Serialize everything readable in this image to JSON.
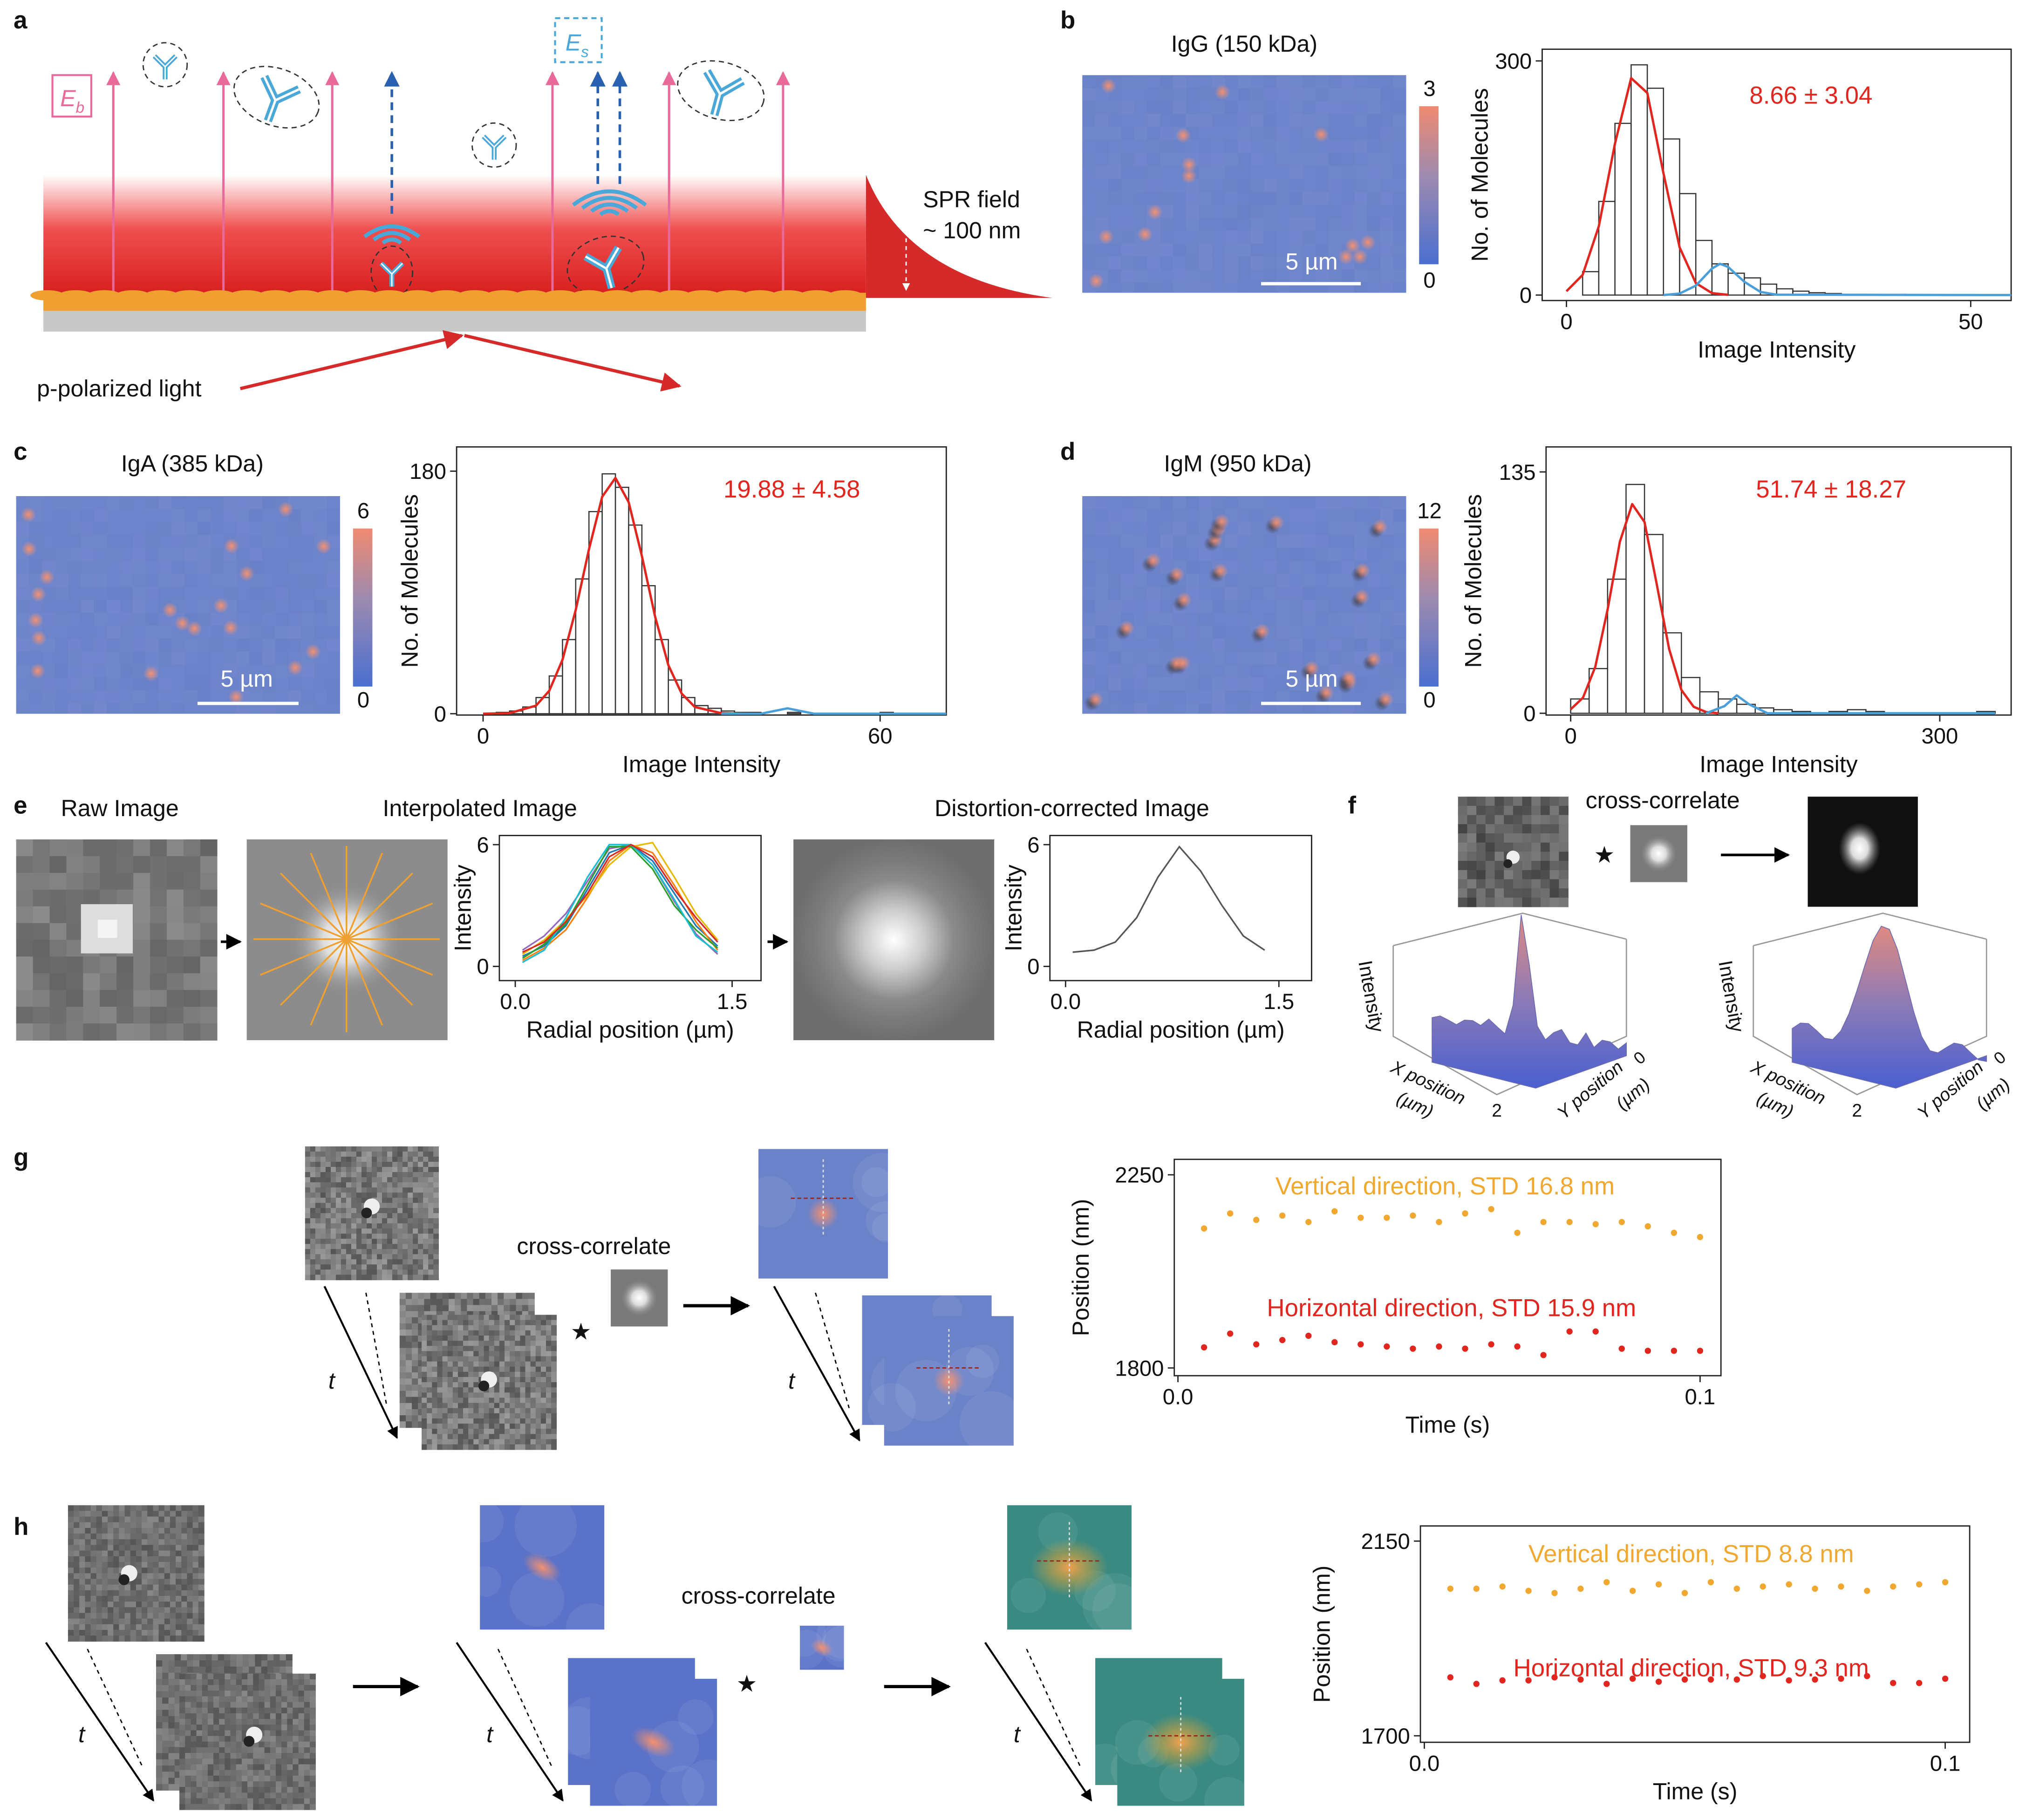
{
  "panel_labels": [
    "a",
    "b",
    "c",
    "d",
    "e",
    "f",
    "g",
    "h"
  ],
  "diagram": {
    "eb": "E",
    "eb_sub": "b",
    "es": "E",
    "es_sub": "s",
    "spr_field": "SPR field",
    "spr_depth": "~ 100 nm",
    "light": "p-polarized light"
  },
  "micrographs": [
    {
      "title": "IgG (150 kDa)",
      "scale_bar": "5 µm",
      "colorbar_ticks": [
        0,
        3
      ]
    },
    {
      "title": "IgA (385 kDa)",
      "scale_bar": "5 µm",
      "colorbar_ticks": [
        0,
        6
      ]
    },
    {
      "title": "IgM (950 kDa)",
      "scale_bar": "5 µm",
      "colorbar_ticks": [
        0,
        12
      ]
    }
  ],
  "panel_e": {
    "raw": "Raw Image",
    "interpolated": "Interpolated Image",
    "corrected": "Distortion-corrected Image"
  },
  "panel_f": {
    "operation": "cross-correlate",
    "star": "★",
    "z_label": "Intensity",
    "x_label": "X position",
    "x_unit": "(µm)",
    "y_label": "Y position",
    "y_unit": "(µm)",
    "x_tick": "2",
    "y_tick": "0"
  },
  "panel_g": {
    "operation": "cross-correlate",
    "star": "★",
    "time": "t"
  },
  "panel_h": {
    "operation": "cross-correlate",
    "star": "★",
    "time": "t"
  },
  "chart_data": [
    {
      "type": "histogram",
      "xlabel": "Image Intensity",
      "ylabel": "No. of Molecules",
      "annotation": "8.66 ± 3.04",
      "annotation_color": "#e0261e",
      "color": "#333333",
      "bins": [
        2,
        4,
        6,
        8,
        10,
        12,
        14,
        16,
        18,
        20,
        22,
        24,
        26,
        28,
        30,
        32,
        34,
        36,
        38,
        40,
        42
      ],
      "counts": [
        30,
        120,
        220,
        295,
        265,
        200,
        130,
        70,
        40,
        28,
        22,
        14,
        8,
        5,
        3,
        2,
        1,
        1,
        0,
        1
      ],
      "fits": [
        {
          "color": "#e0261e",
          "x": [
            0,
            2,
            4,
            6,
            8,
            10,
            12,
            14,
            16,
            18,
            20
          ],
          "values": [
            4.9,
            25.8,
            88,
            194,
            278,
            259,
            156,
            61,
            15.4,
            2.5,
            0.3
          ]
        },
        {
          "color": "#4a9fd8",
          "x": [
            12,
            14,
            16,
            18,
            19,
            20,
            22,
            24,
            26,
            55
          ],
          "values": [
            0,
            2,
            12,
            34,
            40,
            36,
            17,
            4,
            0.5,
            0
          ]
        }
      ],
      "xlim": [
        -3,
        55
      ],
      "xticks": [
        0,
        50
      ],
      "ylim": [
        -7,
        315
      ],
      "yticks": [
        0,
        300
      ]
    },
    {
      "type": "histogram",
      "xlabel": "Image Intensity",
      "ylabel": "No. of Molecules",
      "annotation": "19.88 ± 4.58",
      "annotation_color": "#e0261e",
      "color": "#333333",
      "bins": [
        0,
        2,
        4,
        6,
        8,
        10,
        12,
        14,
        16,
        18,
        20,
        22,
        24,
        26,
        28,
        30,
        32,
        34,
        36,
        38,
        40,
        42,
        44,
        46,
        48,
        50,
        52,
        54,
        56,
        58,
        60,
        62,
        64,
        66,
        68,
        70
      ],
      "counts": [
        0,
        1,
        2,
        5,
        12,
        28,
        55,
        100,
        150,
        178,
        168,
        140,
        95,
        55,
        25,
        12,
        6,
        4,
        2,
        1,
        1,
        0,
        0,
        1,
        0,
        0,
        0,
        0,
        0,
        0,
        1,
        0,
        0,
        0,
        0
      ],
      "fits": [
        {
          "color": "#e0261e",
          "x": [
            0,
            4,
            8,
            10,
            12,
            14,
            16,
            18,
            20,
            22,
            24,
            26,
            28,
            30,
            32,
            36,
            40
          ],
          "values": [
            0,
            0.4,
            6,
            17,
            40,
            77,
            122,
            161,
            175,
            157,
            117,
            72,
            36,
            15,
            5,
            0.4,
            0
          ]
        },
        {
          "color": "#4a9fd8",
          "x": [
            36,
            42,
            44,
            46,
            48,
            50,
            56,
            70
          ],
          "values": [
            0,
            0,
            2,
            4,
            2,
            0,
            0,
            0
          ]
        }
      ],
      "xlim": [
        -4,
        70
      ],
      "xticks": [
        0,
        60
      ],
      "ylim": [
        -1,
        198
      ],
      "yticks": [
        0,
        180
      ]
    },
    {
      "type": "histogram",
      "xlabel": "Image Intensity",
      "ylabel": "No. of Molecules",
      "annotation": "51.74 ± 18.27",
      "annotation_color": "#e0261e",
      "color": "#333333",
      "bins": [
        0,
        15,
        30,
        45,
        60,
        75,
        90,
        105,
        120,
        135,
        150,
        165,
        180,
        195,
        210,
        225,
        240,
        255,
        270,
        285,
        300,
        315,
        330,
        345
      ],
      "counts": [
        8,
        25,
        75,
        128,
        100,
        45,
        20,
        12,
        8,
        5,
        3,
        2,
        1,
        0,
        1,
        2,
        1,
        0,
        0,
        0,
        0,
        0,
        1
      ],
      "fits": [
        {
          "color": "#e0261e",
          "x": [
            0,
            10,
            20,
            30,
            40,
            50,
            60,
            70,
            80,
            90,
            100,
            110,
            120
          ],
          "values": [
            2.2,
            8.7,
            26,
            58,
            96,
            117,
            107,
            72,
            36,
            13,
            3.6,
            0.7,
            0
          ]
        },
        {
          "color": "#4a9fd8",
          "x": [
            110,
            125,
            135,
            145,
            160,
            345
          ],
          "values": [
            0,
            4,
            10,
            5,
            0,
            0
          ]
        }
      ],
      "xlim": [
        -20,
        358
      ],
      "xticks": [
        0,
        300
      ],
      "ylim": [
        -1,
        149
      ],
      "yticks": [
        0,
        135
      ]
    },
    {
      "type": "line",
      "xlabel": "Radial position (µm)",
      "ylabel": "Intensity",
      "x": [
        0.05,
        0.2,
        0.35,
        0.5,
        0.65,
        0.8,
        0.95,
        1.1,
        1.25,
        1.4
      ],
      "series": [
        {
          "color": "#1f77b4",
          "values": [
            0.5,
            1.0,
            2.0,
            3.8,
            5.6,
            6.0,
            5.2,
            3.6,
            2.0,
            1.0
          ]
        },
        {
          "color": "#ff7f0e",
          "values": [
            0.3,
            0.9,
            1.8,
            3.4,
            5.2,
            6.0,
            5.6,
            4.0,
            2.2,
            0.8
          ]
        },
        {
          "color": "#e6b800",
          "values": [
            0.6,
            1.3,
            2.3,
            3.5,
            5.0,
            5.9,
            6.1,
            4.4,
            2.6,
            1.3
          ]
        },
        {
          "color": "#9467bd",
          "values": [
            0.8,
            1.5,
            2.6,
            4.2,
            5.8,
            6.0,
            5.0,
            3.2,
            1.6,
            0.6
          ]
        },
        {
          "color": "#2ca02c",
          "values": [
            0.4,
            1.1,
            2.1,
            4.0,
            5.9,
            5.9,
            4.8,
            3.0,
            1.8,
            0.9
          ]
        },
        {
          "color": "#17becf",
          "values": [
            0.2,
            0.8,
            2.4,
            4.4,
            6.0,
            6.0,
            5.0,
            3.3,
            1.5,
            0.7
          ]
        },
        {
          "color": "#d62728",
          "values": [
            0.7,
            1.2,
            2.2,
            3.6,
            5.4,
            6.0,
            5.4,
            3.8,
            2.4,
            1.2
          ]
        }
      ],
      "xlim": [
        -0.11,
        1.7
      ],
      "xticks": [
        {
          "value": 0,
          "label": "0.0"
        },
        1.5
      ],
      "ylim": [
        -0.7,
        6.45
      ],
      "yticks": [
        0,
        6
      ]
    },
    {
      "type": "line",
      "xlabel": "Radial position (µm)",
      "ylabel": "Intensity",
      "x": [
        0.05,
        0.2,
        0.35,
        0.5,
        0.65,
        0.8,
        0.95,
        1.1,
        1.25,
        1.4
      ],
      "series": [
        {
          "color": "#555555",
          "values": [
            0.7,
            0.8,
            1.2,
            2.4,
            4.4,
            5.9,
            4.7,
            3.0,
            1.5,
            0.8
          ]
        }
      ],
      "xlim": [
        -0.11,
        1.73
      ],
      "xticks": [
        {
          "value": 0,
          "label": "0.0"
        },
        1.5
      ],
      "ylim": [
        -0.7,
        6.45
      ],
      "yticks": [
        0,
        6
      ]
    },
    {
      "type": "scatter",
      "xlabel": "Time (s)",
      "ylabel": "Position (nm)",
      "x": [
        0.005,
        0.01,
        0.015,
        0.02,
        0.025,
        0.03,
        0.035,
        0.04,
        0.045,
        0.05,
        0.055,
        0.06,
        0.065,
        0.07,
        0.075,
        0.08,
        0.085,
        0.09,
        0.095,
        0.1
      ],
      "series": [
        {
          "name": "Vertical direction, STD 16.8 nm",
          "color": "#f0a830",
          "values": [
            2125,
            2160,
            2145,
            2155,
            2140,
            2165,
            2150,
            2150,
            2155,
            2140,
            2160,
            2170,
            2115,
            2140,
            2140,
            2135,
            2140,
            2130,
            2115,
            2105
          ]
        },
        {
          "name": "Horizontal direction, STD 15.9 nm",
          "color": "#e0261e",
          "values": [
            1848,
            1880,
            1855,
            1865,
            1875,
            1860,
            1855,
            1850,
            1845,
            1850,
            1845,
            1855,
            1850,
            1830,
            1885,
            1885,
            1845,
            1840,
            1840,
            1840
          ]
        }
      ],
      "xlim": [
        -0.0007,
        0.104
      ],
      "xticks": [
        {
          "value": 0,
          "label": "0.0"
        },
        0.1
      ],
      "ylim": [
        1782,
        2286
      ],
      "yticks": [
        1800,
        2250
      ]
    },
    {
      "type": "scatter",
      "xlabel": "Time (s)",
      "ylabel": "Position (nm)",
      "x": [
        0.005,
        0.01,
        0.015,
        0.02,
        0.025,
        0.03,
        0.035,
        0.04,
        0.045,
        0.05,
        0.055,
        0.06,
        0.065,
        0.07,
        0.075,
        0.08,
        0.085,
        0.09,
        0.095,
        0.1
      ],
      "series": [
        {
          "name": "Vertical direction, STD 8.8 nm",
          "color": "#f0a830",
          "values": [
            2040,
            2040,
            2045,
            2035,
            2030,
            2040,
            2055,
            2035,
            2050,
            2030,
            2055,
            2040,
            2045,
            2050,
            2040,
            2045,
            2035,
            2045,
            2050,
            2055
          ]
        },
        {
          "name": "Horizontal direction, STD 9.3 nm",
          "color": "#e0261e",
          "values": [
            1835,
            1820,
            1828,
            1828,
            1835,
            1830,
            1820,
            1832,
            1825,
            1830,
            1830,
            1830,
            1838,
            1828,
            1830,
            1832,
            1838,
            1822,
            1822,
            1832
          ]
        }
      ],
      "xlim": [
        -0.00075,
        0.1047
      ],
      "xticks": [
        {
          "value": 0,
          "label": "0.0"
        },
        0.1
      ],
      "ylim": [
        1685,
        2185
      ],
      "yticks": [
        1700,
        2150
      ]
    }
  ]
}
